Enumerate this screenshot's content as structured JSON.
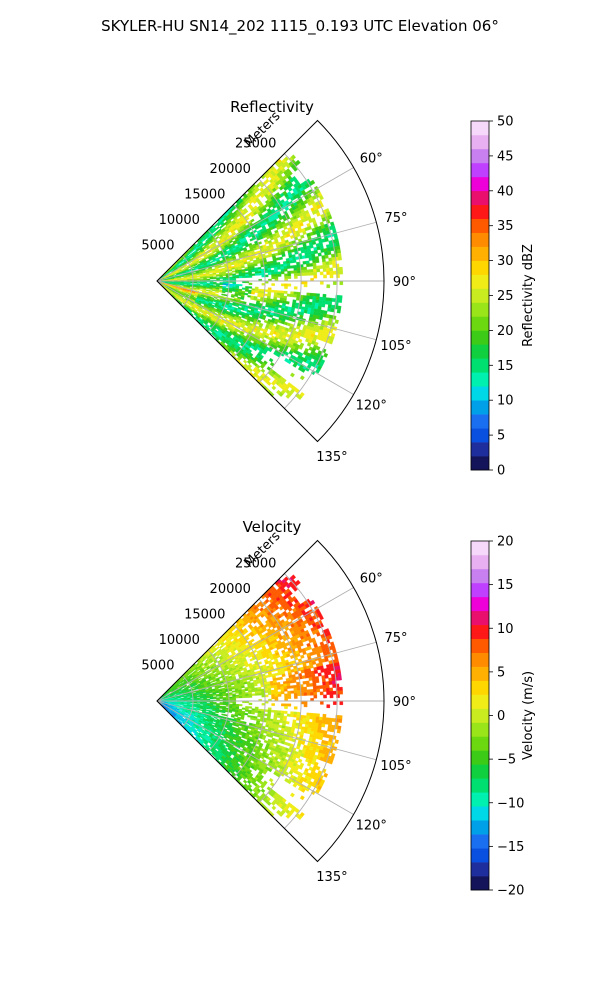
{
  "figure": {
    "suptitle": "SKYLER-HU  SN14_202  1115_0.193 UTC Elevation 06°"
  },
  "chart_data": [
    {
      "type": "heatmap",
      "projection": "polar-sector",
      "title": "Reflectivity",
      "radial_label": "Meters",
      "radial_ticks": [
        5000,
        10000,
        15000,
        20000,
        25000
      ],
      "radial_tick_labels": [
        "5000",
        "10000",
        "15000",
        "20000",
        "25000"
      ],
      "radial_max": 31500,
      "azimuth_range_deg": [
        45,
        135
      ],
      "angle_ticks": [
        60,
        75,
        90,
        105,
        120,
        135
      ],
      "angle_tick_labels": [
        "60°",
        "75°",
        "90°",
        "105°",
        "120°",
        "135°"
      ],
      "grid": true,
      "colorbar": {
        "label": "Reflectivity dBZ",
        "range": [
          0,
          50
        ],
        "ticks": [
          0,
          5,
          10,
          15,
          20,
          25,
          30,
          35,
          40,
          45,
          50
        ],
        "tick_labels": [
          "0",
          "5",
          "10",
          "15",
          "20",
          "25",
          "30",
          "35",
          "40",
          "45",
          "50"
        ],
        "colors": [
          "#14145a",
          "#1e2e9c",
          "#0a50e0",
          "#1a6ef0",
          "#00a0e8",
          "#00d8e8",
          "#00f0b0",
          "#00e070",
          "#10d040",
          "#3ccc18",
          "#6cd810",
          "#9ae41a",
          "#c8ec20",
          "#f0ec18",
          "#ffd700",
          "#ffb000",
          "#ff8c00",
          "#ff5a00",
          "#ff1818",
          "#e8106c",
          "#ee00d8",
          "#c040ff",
          "#c880f0",
          "#e8b0f0",
          "#f6d8fa"
        ]
      },
      "field_description": "Echo mostly 18-28 dBZ (green-yellow) across sector, patches up to 35 dBZ near ~8000-15000 m, weaker 10-15 dBZ pockets near 90-100°."
    },
    {
      "type": "heatmap",
      "projection": "polar-sector",
      "title": "Velocity",
      "radial_label": "Meters",
      "radial_ticks": [
        5000,
        10000,
        15000,
        20000,
        25000
      ],
      "radial_tick_labels": [
        "5000",
        "10000",
        "15000",
        "20000",
        "25000"
      ],
      "radial_max": 31500,
      "azimuth_range_deg": [
        45,
        135
      ],
      "angle_ticks": [
        60,
        75,
        90,
        105,
        120,
        135
      ],
      "angle_tick_labels": [
        "60°",
        "75°",
        "90°",
        "105°",
        "120°",
        "135°"
      ],
      "grid": true,
      "colorbar": {
        "label": "Velocity (m/s)",
        "range": [
          -20,
          20
        ],
        "ticks": [
          -20,
          -15,
          -10,
          -5,
          0,
          5,
          10,
          15,
          20
        ],
        "tick_labels": [
          "−20",
          "−15",
          "−10",
          "−5",
          "0",
          "5",
          "10",
          "15",
          "20"
        ],
        "colors": [
          "#14145a",
          "#1e2e9c",
          "#0a50e0",
          "#1a6ef0",
          "#00a0e8",
          "#00d8e8",
          "#00f0b0",
          "#00e070",
          "#10d040",
          "#3ccc18",
          "#6cd810",
          "#9ae41a",
          "#c8ec20",
          "#f0ec18",
          "#ffd700",
          "#ffb000",
          "#ff8c00",
          "#ff5a00",
          "#ff1818",
          "#e8106c",
          "#ee00d8",
          "#c040ff",
          "#c880f0",
          "#e8b0f0",
          "#f6d8fa"
        ]
      },
      "field_description": "Near-radar velocities around -10 m/s (cyan-green), increasing with range to 0-5 m/s (yellow-orange) in the far field, southern azimuths around -3 m/s."
    }
  ]
}
